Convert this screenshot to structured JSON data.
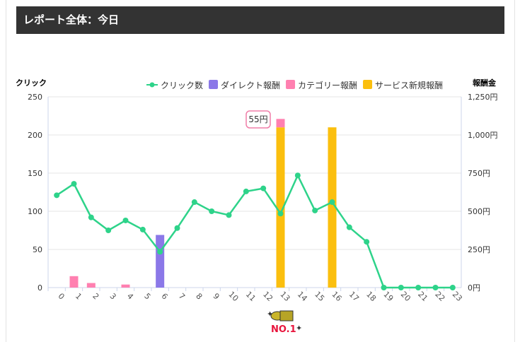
{
  "header": {
    "title": "レポート全体：今日"
  },
  "tooltip": {
    "text": "55円"
  },
  "chart_data": {
    "type": "bar+line",
    "title": "レポート全体：今日",
    "ylabel": "クリック",
    "y2label": "報酬金",
    "ylim": [
      0,
      250
    ],
    "y2lim": [
      0,
      1250
    ],
    "yticks": [
      "0",
      "50",
      "100",
      "150",
      "200",
      "250"
    ],
    "y2ticks": [
      "0円",
      "250円",
      "500円",
      "750円",
      "1,000円",
      "1,250円"
    ],
    "categories": [
      "0",
      "1",
      "2",
      "3",
      "4",
      "5",
      "6",
      "7",
      "8",
      "9",
      "10",
      "11",
      "12",
      "13",
      "14",
      "15",
      "16",
      "17",
      "18",
      "19",
      "20",
      "21",
      "22",
      "23"
    ],
    "legend_position": "top-right",
    "series": [
      {
        "name": "クリック数",
        "type": "line",
        "axis": "left",
        "color": "#2ed38a",
        "values": [
          121,
          136,
          92,
          75,
          88,
          76,
          47,
          78,
          112,
          100,
          95,
          126,
          130,
          97,
          147,
          101,
          112,
          79,
          60,
          0,
          0,
          0,
          0,
          0
        ]
      },
      {
        "name": "ダイレクト報酬",
        "type": "bar",
        "axis": "right",
        "color": "#8b78e8",
        "values": [
          0,
          0,
          0,
          0,
          0,
          0,
          345,
          0,
          0,
          0,
          0,
          0,
          0,
          0,
          0,
          0,
          0,
          0,
          0,
          0,
          0,
          0,
          0,
          0
        ]
      },
      {
        "name": "カテゴリー報酬",
        "type": "bar",
        "axis": "right",
        "color": "#ff80b0",
        "values": [
          0,
          75,
          30,
          0,
          20,
          0,
          0,
          0,
          0,
          0,
          0,
          0,
          0,
          55,
          0,
          0,
          0,
          0,
          0,
          0,
          0,
          0,
          0,
          0
        ]
      },
      {
        "name": "サービス新規報酬",
        "type": "bar",
        "axis": "right",
        "color": "#fbbf0e",
        "values": [
          0,
          0,
          0,
          0,
          0,
          0,
          0,
          0,
          0,
          0,
          0,
          0,
          0,
          1050,
          0,
          0,
          1050,
          0,
          0,
          0,
          0,
          0,
          0,
          0
        ]
      }
    ]
  },
  "badge": {
    "text": "NO.1"
  }
}
